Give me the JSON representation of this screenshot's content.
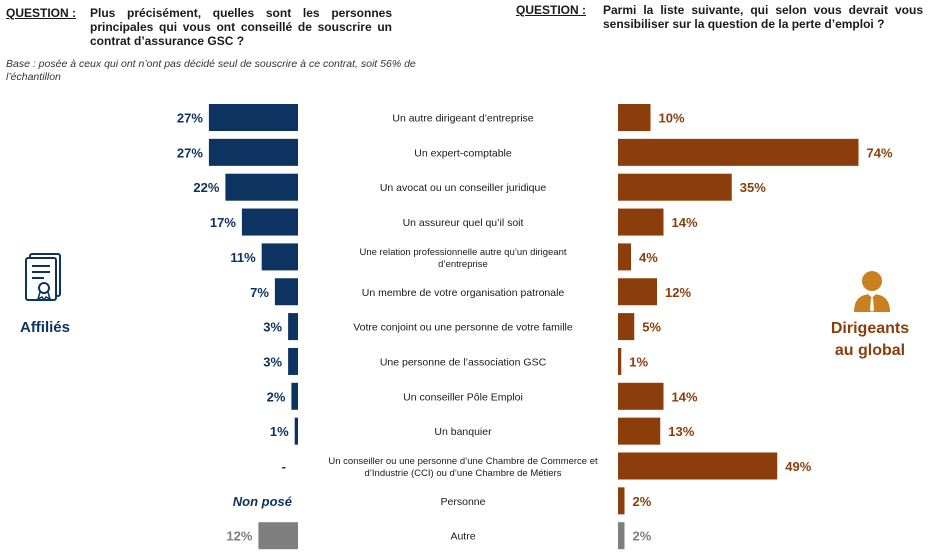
{
  "left_question": {
    "label": "QUESTION :",
    "text": "Plus précisément, quelles sont les personnes principales qui vous ont conseillé de souscrire un contrat d’assurance GSC ?",
    "base": "Base : posée à ceux qui ont n’ont pas décidé seul de souscrire à ce contrat, soit 56% de l’échantillon"
  },
  "right_question": {
    "label": "QUESTION :",
    "text": "Parmi la liste suivante, qui selon vous devrait vous sensibiliser sur la question de la perte d’emploi ?"
  },
  "left_group_label": "Affiliés",
  "right_group_label": "Dirigeants au global",
  "icons": {
    "left": "certificate-icon",
    "right": "businessman-icon"
  },
  "colors": {
    "left": "#0d3361",
    "right": "#8b3e0b",
    "grey": "#7f7f7f"
  },
  "chart_data": {
    "type": "bar",
    "orientation": "horizontal-butterfly",
    "categories": [
      [
        "Un autre dirigeant d’entreprise"
      ],
      [
        "Un expert-comptable"
      ],
      [
        "Un avocat ou un conseiller juridique"
      ],
      [
        "Un assureur quel qu’il soit"
      ],
      [
        "Une relation professionnelle autre qu’un dirigeant",
        "d’entreprise"
      ],
      [
        "Un membre de votre organisation patronale"
      ],
      [
        "Votre conjoint ou une personne de votre famille"
      ],
      [
        "Une personne de l’association GSC"
      ],
      [
        "Un conseiller Pôle Emploi"
      ],
      [
        "Un banquier"
      ],
      [
        "Un conseiller ou une personne d’une Chambre de Commerce et",
        "d’Industrie (CCI) ou d’une Chambre de Métiers"
      ],
      [
        "Personne"
      ],
      [
        "Autre"
      ]
    ],
    "series": [
      {
        "name": "Affiliés",
        "values": [
          27,
          27,
          22,
          17,
          11,
          7,
          3,
          3,
          2,
          1,
          null,
          null,
          12
        ],
        "labels": [
          "27%",
          "27%",
          "22%",
          "17%",
          "11%",
          "7%",
          "3%",
          "3%",
          "2%",
          "1%",
          "-",
          "Non posé",
          "12%"
        ]
      },
      {
        "name": "Dirigeants au global",
        "values": [
          10,
          74,
          35,
          14,
          4,
          12,
          5,
          1,
          14,
          13,
          49,
          2,
          2
        ],
        "labels": [
          "10%",
          "74%",
          "35%",
          "14%",
          "4%",
          "12%",
          "5%",
          "1%",
          "14%",
          "13%",
          "49%",
          "2%",
          "2%"
        ]
      }
    ],
    "grey_categories": [
      12
    ]
  }
}
